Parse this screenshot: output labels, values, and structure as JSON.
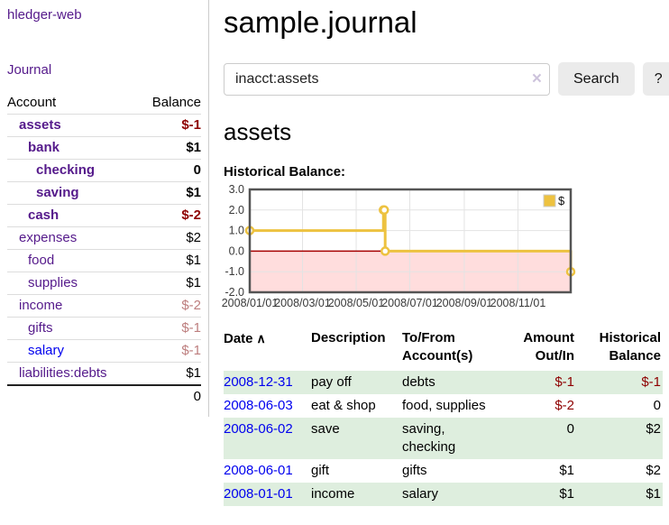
{
  "app": {
    "title": "hledger-web",
    "nav_journal": "Journal"
  },
  "sidebar": {
    "columns": {
      "account": "Account",
      "balance": "Balance"
    },
    "accounts": [
      {
        "name": "assets",
        "balance": "$-1",
        "level": 1,
        "bold": true,
        "neg": "strong"
      },
      {
        "name": "bank",
        "balance": "$1",
        "level": 2,
        "bold": true
      },
      {
        "name": "checking",
        "balance": "0",
        "level": 3,
        "bold": true
      },
      {
        "name": "saving",
        "balance": "$1",
        "level": 3,
        "bold": true
      },
      {
        "name": "cash",
        "balance": "$-2",
        "level": 2,
        "bold": true,
        "neg": "strong"
      },
      {
        "name": "expenses",
        "balance": "$2",
        "level": 1
      },
      {
        "name": "food",
        "balance": "$1",
        "level": 2
      },
      {
        "name": "supplies",
        "balance": "$1",
        "level": 2
      },
      {
        "name": "income",
        "balance": "$-2",
        "level": 1,
        "neg": "dim"
      },
      {
        "name": "gifts",
        "balance": "$-1",
        "level": 2,
        "neg": "dim"
      },
      {
        "name": "salary",
        "balance": "$-1",
        "level": 2,
        "neg": "dim",
        "unvisited": true
      },
      {
        "name": "liabilities:debts",
        "balance": "$1",
        "level": 1
      }
    ],
    "total": "0"
  },
  "header": {
    "title": "sample.journal"
  },
  "search": {
    "value": "inacct:assets",
    "clear_icon": "×",
    "button": "Search",
    "help_button": "?"
  },
  "account_page": {
    "heading": "assets",
    "chart_label": "Historical Balance:"
  },
  "chart_data": {
    "type": "line",
    "step": true,
    "title": "Historical Balance",
    "series": [
      {
        "name": "$",
        "color": "#edc240",
        "points": [
          [
            "2008-01-01",
            1
          ],
          [
            "2008-06-01",
            2
          ],
          [
            "2008-06-02",
            2
          ],
          [
            "2008-06-03",
            0
          ],
          [
            "2008-12-31",
            -1
          ]
        ]
      }
    ],
    "xlim": [
      "2008-01-01",
      "2008-12-31"
    ],
    "ylim": [
      -2,
      3
    ],
    "x_ticks": [
      "2008/01/01",
      "2008/03/01",
      "2008/05/01",
      "2008/07/01",
      "2008/09/01",
      "2008/11/01"
    ],
    "y_ticks": [
      3.0,
      2.0,
      1.0,
      0.0,
      -1.0,
      -2.0
    ],
    "legend": {
      "label": "$",
      "position": "top-right"
    },
    "grid": true,
    "colors": {
      "grid_line": "#e3e3e3",
      "plot_border": "#545454",
      "negative_region": "#ffdddd",
      "zero_line": "#a60000",
      "marker_fill": "#ffffff"
    }
  },
  "register": {
    "sort_icon": "∧",
    "columns": [
      "Date",
      "Description",
      "To/From Account(s)",
      "Amount Out/In",
      "Historical Balance"
    ],
    "rows": [
      {
        "date": "2008-12-31",
        "description": "pay off",
        "accounts": "debts",
        "amount": "$-1",
        "balance": "$-1"
      },
      {
        "date": "2008-06-03",
        "description": "eat & shop",
        "accounts": "food, supplies",
        "amount": "$-2",
        "balance": "0"
      },
      {
        "date": "2008-06-02",
        "description": "save",
        "accounts": "saving, checking",
        "amount": "0",
        "balance": "$2"
      },
      {
        "date": "2008-06-01",
        "description": "gift",
        "accounts": "gifts",
        "amount": "$1",
        "balance": "$2"
      },
      {
        "date": "2008-01-01",
        "description": "income",
        "accounts": "salary",
        "amount": "$1",
        "balance": "$1"
      }
    ]
  }
}
